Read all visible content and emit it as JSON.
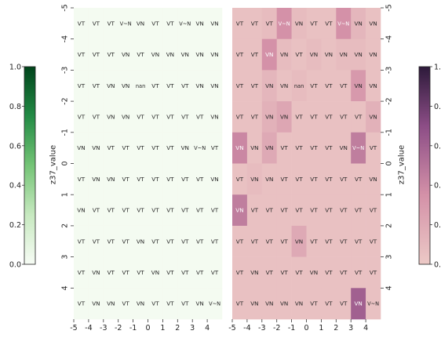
{
  "chart_data": [
    {
      "type": "heatmap",
      "colormap": "Greens",
      "ylabel": "z37_value",
      "x_ticks": [
        "-5",
        "-4",
        "-3",
        "-2",
        "-1",
        "0",
        "1",
        "2",
        "3",
        "4"
      ],
      "y_ticks": [
        "-5",
        "-4",
        "-3",
        "-2",
        "-1",
        "0",
        "1",
        "2",
        "3",
        "4"
      ],
      "colorbar_ticks": [
        "1.0",
        "0.8",
        "0.6",
        "0.4",
        "0.2",
        "0.0"
      ],
      "cells": [
        [
          "VT",
          "VT",
          "VT",
          "V~N",
          "VN",
          "VT",
          "VT",
          "V~N",
          "VN",
          "VN"
        ],
        [
          "VT",
          "VT",
          "VT",
          "VN",
          "VT",
          "VN",
          "VN",
          "VN",
          "VN",
          "VN"
        ],
        [
          "VT",
          "VT",
          "VN",
          "VN",
          "nan",
          "VT",
          "VT",
          "VT",
          "VN",
          "VN"
        ],
        [
          "VT",
          "VT",
          "VN",
          "VN",
          "VT",
          "VT",
          "VT",
          "VT",
          "VT",
          "VN"
        ],
        [
          "VN",
          "VN",
          "VT",
          "VT",
          "VT",
          "VT",
          "VT",
          "VN",
          "V~N",
          "VT"
        ],
        [
          "VT",
          "VN",
          "VN",
          "VT",
          "VT",
          "VT",
          "VT",
          "VT",
          "VT",
          "VN"
        ],
        [
          "VN",
          "VT",
          "VT",
          "VT",
          "VT",
          "VT",
          "VT",
          "VT",
          "VT",
          "VT"
        ],
        [
          "VT",
          "VT",
          "VT",
          "VT",
          "VN",
          "VT",
          "VT",
          "VT",
          "VT",
          "VT"
        ],
        [
          "VT",
          "VN",
          "VT",
          "VT",
          "VT",
          "VN",
          "VT",
          "VT",
          "VT",
          "VT"
        ],
        [
          "VT",
          "VN",
          "VN",
          "VT",
          "VN",
          "VT",
          "VT",
          "VT",
          "VN",
          "V~N"
        ]
      ],
      "values": [
        [
          0,
          0,
          0,
          0,
          0,
          0,
          0,
          0,
          0,
          0
        ],
        [
          0,
          0,
          0,
          0,
          0,
          0,
          0,
          0,
          0,
          0
        ],
        [
          0,
          0,
          0,
          0,
          0,
          0,
          0,
          0,
          0,
          0
        ],
        [
          0,
          0,
          0,
          0,
          0,
          0,
          0,
          0,
          0,
          0
        ],
        [
          0,
          0,
          0,
          0,
          0,
          0,
          0,
          0,
          0,
          0
        ],
        [
          0,
          0,
          0,
          0,
          0,
          0,
          0,
          0,
          0,
          0
        ],
        [
          0,
          0,
          0,
          0,
          0,
          0,
          0,
          0,
          0,
          0
        ],
        [
          0,
          0,
          0,
          0,
          0,
          0,
          0,
          0,
          0,
          0
        ],
        [
          0,
          0,
          0,
          0,
          0,
          0,
          0,
          0,
          0,
          0
        ],
        [
          0,
          0,
          0,
          0,
          0,
          0,
          0,
          0,
          0,
          0
        ]
      ]
    },
    {
      "type": "heatmap",
      "colormap": "PuRd-dark",
      "ylabel": "z37_value",
      "x_ticks": [
        "-5",
        "-4",
        "-3",
        "-2",
        "-1",
        "0",
        "1",
        "2",
        "3",
        "4"
      ],
      "y_ticks": [
        "-5",
        "-4",
        "-3",
        "-2",
        "-1",
        "0",
        "1",
        "2",
        "3",
        "4"
      ],
      "colorbar_ticks": [
        "1.",
        "0.",
        "0.",
        "0.",
        "0.",
        "0."
      ],
      "cells": [
        [
          "VT",
          "VT",
          "VT",
          "V~N",
          "VN",
          "VT",
          "VT",
          "V~N",
          "VN",
          "VN"
        ],
        [
          "VT",
          "VT",
          "VN",
          "VN",
          "VT",
          "VN",
          "VN",
          "VN",
          "VN",
          "VN"
        ],
        [
          "VT",
          "VT",
          "VN",
          "VN",
          "nan",
          "VT",
          "VT",
          "VT",
          "VN",
          "VN"
        ],
        [
          "VT",
          "VT",
          "VN",
          "VN",
          "VT",
          "VT",
          "VT",
          "VT",
          "VT",
          "VN"
        ],
        [
          "VN",
          "VN",
          "VN",
          "VT",
          "VT",
          "VT",
          "VT",
          "VN",
          "V~N",
          "VT"
        ],
        [
          "VT",
          "VN",
          "VN",
          "VT",
          "VT",
          "VT",
          "VT",
          "VT",
          "VT",
          "VN"
        ],
        [
          "VN",
          "VT",
          "VT",
          "VT",
          "VT",
          "VT",
          "VT",
          "VT",
          "VT",
          "VT"
        ],
        [
          "VT",
          "VT",
          "VT",
          "VT",
          "VN",
          "VT",
          "VT",
          "VT",
          "VT",
          "VT"
        ],
        [
          "VT",
          "VN",
          "VT",
          "VT",
          "VT",
          "VN",
          "VT",
          "VT",
          "VT",
          "VT"
        ],
        [
          "VT",
          "VN",
          "VN",
          "VN",
          "VN",
          "VT",
          "VT",
          "VT",
          "VN",
          "V~N"
        ]
      ],
      "values": [
        [
          0.05,
          0.05,
          0.08,
          0.35,
          0.08,
          0.05,
          0.05,
          0.35,
          0.12,
          0.05
        ],
        [
          0.05,
          0.05,
          0.35,
          0.08,
          0.05,
          0.08,
          0.05,
          0.08,
          0.08,
          0.05
        ],
        [
          0.05,
          0.05,
          0.12,
          0.05,
          0.08,
          0.05,
          0.05,
          0.05,
          0.3,
          0.05
        ],
        [
          0.05,
          0.05,
          0.15,
          0.22,
          0.05,
          0.05,
          0.05,
          0.05,
          0.05,
          0.15
        ],
        [
          0.4,
          0.05,
          0.2,
          0.05,
          0.05,
          0.05,
          0.05,
          0.05,
          0.45,
          0.05
        ],
        [
          0.05,
          0.08,
          0.05,
          0.05,
          0.05,
          0.05,
          0.05,
          0.05,
          0.05,
          0.05
        ],
        [
          0.45,
          0.05,
          0.05,
          0.05,
          0.05,
          0.05,
          0.05,
          0.05,
          0.05,
          0.05
        ],
        [
          0.05,
          0.05,
          0.05,
          0.05,
          0.2,
          0.05,
          0.05,
          0.05,
          0.05,
          0.05
        ],
        [
          0.05,
          0.05,
          0.05,
          0.05,
          0.05,
          0.05,
          0.05,
          0.05,
          0.05,
          0.05
        ],
        [
          0.05,
          0.05,
          0.05,
          0.05,
          0.05,
          0.05,
          0.05,
          0.05,
          0.6,
          0.05
        ]
      ]
    }
  ]
}
